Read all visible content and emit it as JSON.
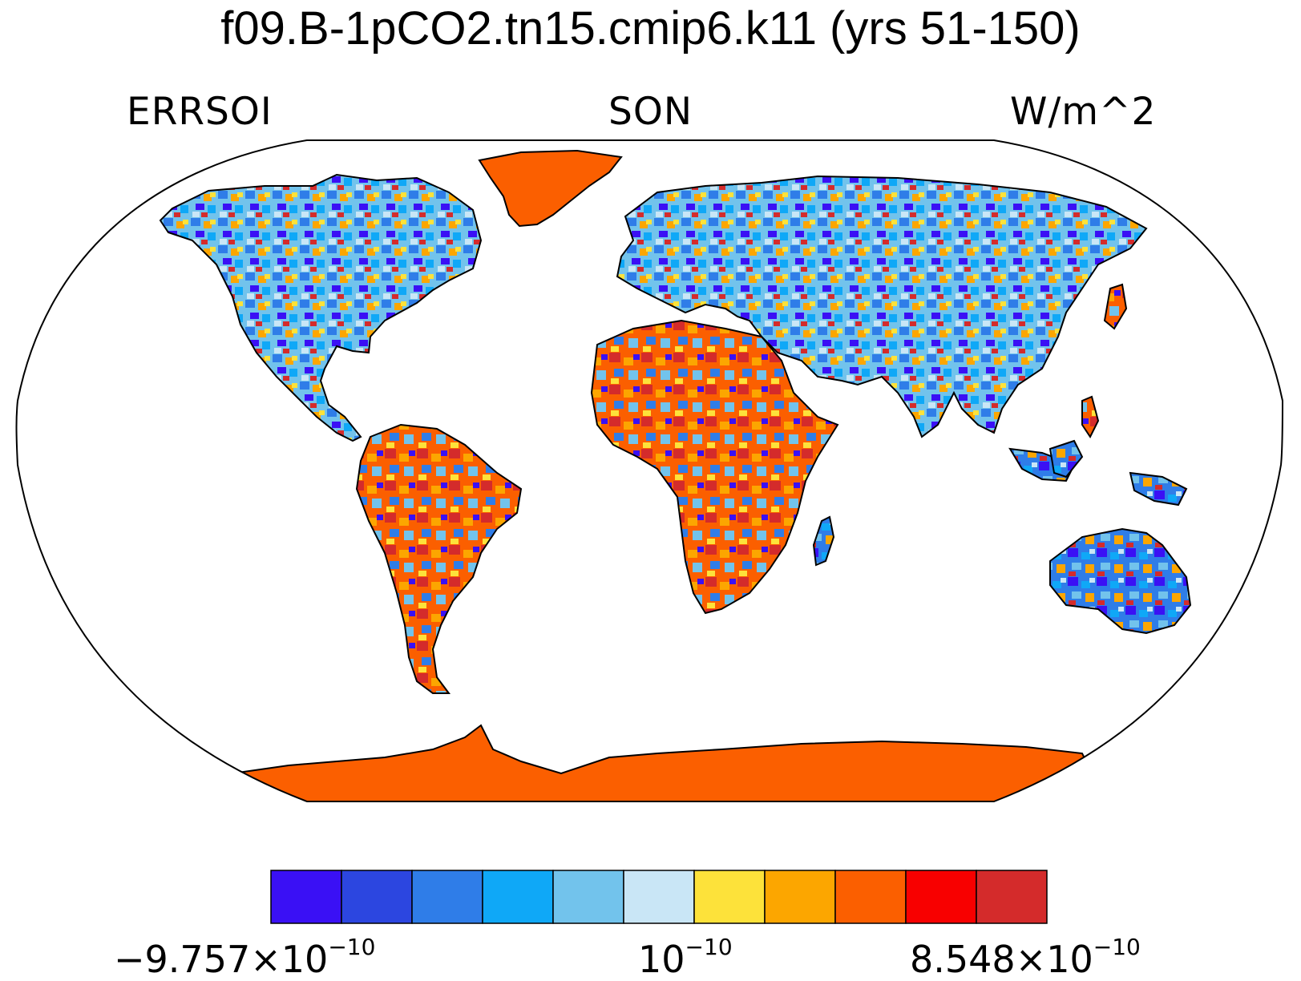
{
  "title": "f09.B-1pCO2.tn15.cmip6.k11 (yrs 51-150)",
  "left_label": "ERRSOI",
  "center_label": "SON",
  "right_label": "W/m^2",
  "colorbar": {
    "colors": [
      "#3a10f5",
      "#2c46e0",
      "#2f7de8",
      "#0fa8f7",
      "#72c3ec",
      "#c9e6f6",
      "#fde23a",
      "#fca600",
      "#fb5f00",
      "#f80000",
      "#d42b2b"
    ],
    "labels": [
      {
        "base": "−9.757×10",
        "exp": "−10"
      },
      {
        "base": "10",
        "exp": "−10"
      },
      {
        "base": "8.548×10",
        "exp": "−10"
      }
    ]
  },
  "map": {
    "projection": "robinson",
    "ocean_color": "#ffffff",
    "coastline_color": "#000000"
  }
}
